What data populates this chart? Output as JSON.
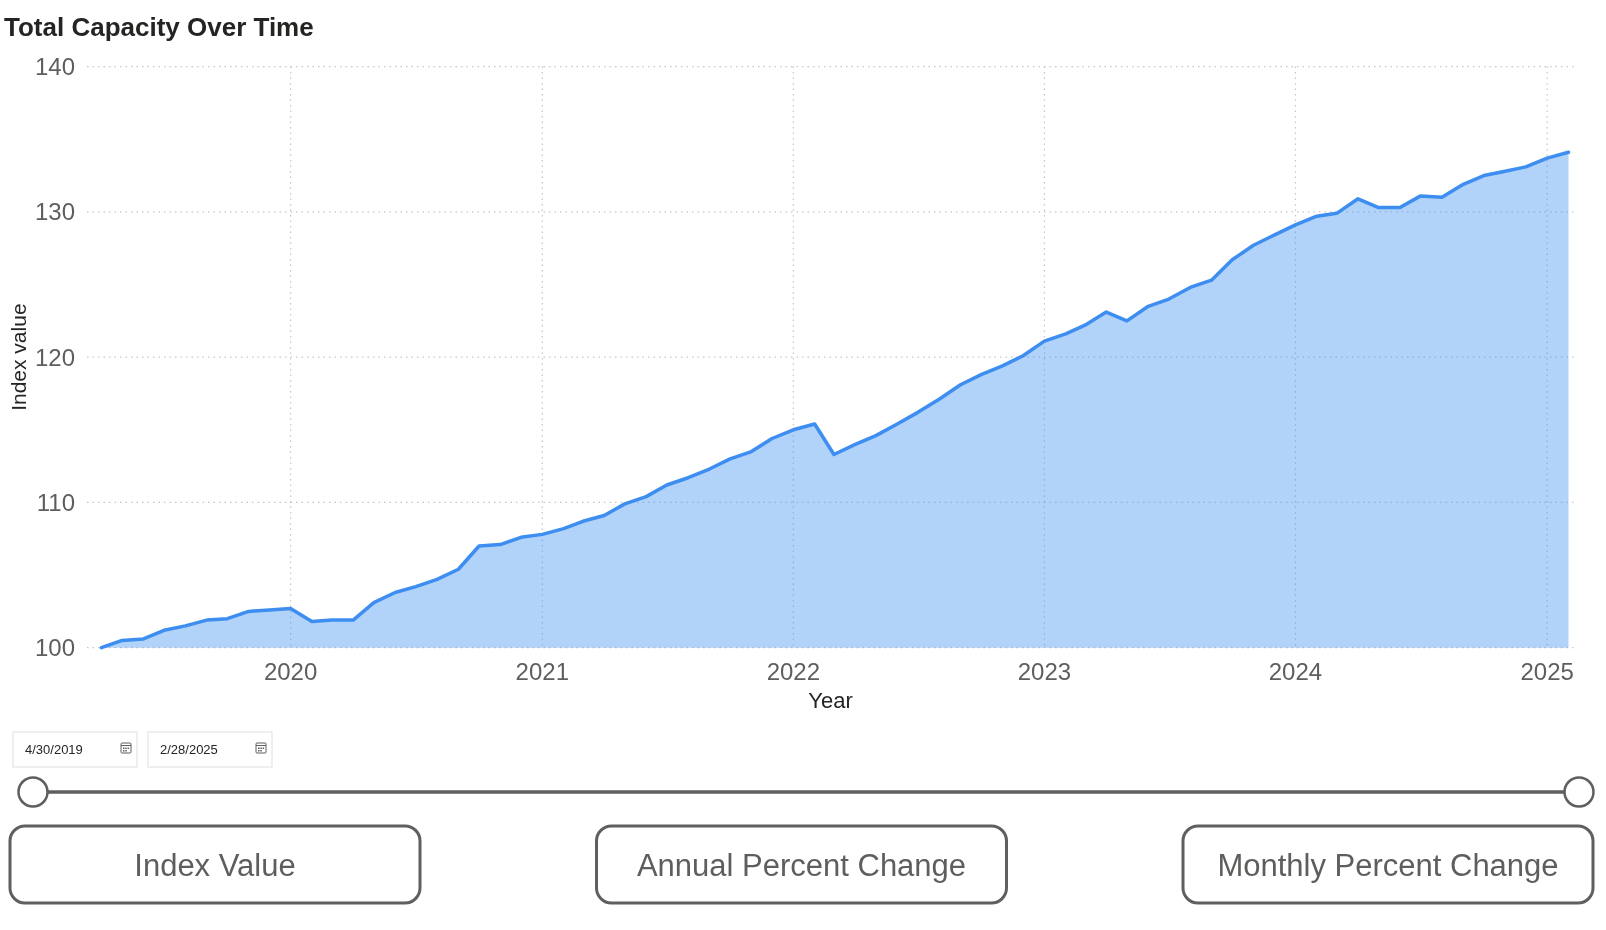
{
  "chart_data": {
    "type": "area",
    "title": "Total Capacity Over Time",
    "xlabel": "Year",
    "ylabel": "Index value",
    "x": [
      "2019-04",
      "2019-05",
      "2019-06",
      "2019-07",
      "2019-08",
      "2019-09",
      "2019-10",
      "2019-11",
      "2019-12",
      "2020-01",
      "2020-02",
      "2020-03",
      "2020-04",
      "2020-05",
      "2020-06",
      "2020-07",
      "2020-08",
      "2020-09",
      "2020-10",
      "2020-11",
      "2020-12",
      "2021-01",
      "2021-02",
      "2021-03",
      "2021-04",
      "2021-05",
      "2021-06",
      "2021-07",
      "2021-08",
      "2021-09",
      "2021-10",
      "2021-11",
      "2021-12",
      "2022-01",
      "2022-02",
      "2022-03",
      "2022-04",
      "2022-05",
      "2022-06",
      "2022-07",
      "2022-08",
      "2022-09",
      "2022-10",
      "2022-11",
      "2022-12",
      "2023-01",
      "2023-02",
      "2023-03",
      "2023-04",
      "2023-05",
      "2023-06",
      "2023-07",
      "2023-08",
      "2023-09",
      "2023-10",
      "2023-11",
      "2023-12",
      "2024-01",
      "2024-02",
      "2024-03",
      "2024-04",
      "2024-05",
      "2024-06",
      "2024-07",
      "2024-08",
      "2024-09",
      "2024-10",
      "2024-11",
      "2024-12",
      "2025-01",
      "2025-02"
    ],
    "values": [
      100.0,
      100.5,
      100.6,
      101.2,
      101.5,
      101.9,
      102.0,
      102.5,
      102.6,
      102.7,
      101.8,
      101.9,
      101.9,
      103.1,
      103.8,
      104.2,
      104.7,
      105.4,
      107.0,
      107.1,
      107.6,
      107.8,
      108.2,
      108.7,
      109.1,
      109.9,
      110.4,
      111.2,
      111.7,
      112.3,
      113.0,
      113.5,
      114.4,
      115.0,
      115.4,
      113.3,
      114.0,
      114.6,
      115.4,
      116.2,
      117.1,
      118.1,
      118.8,
      119.4,
      120.1,
      121.1,
      121.6,
      122.2,
      123.1,
      122.5,
      123.5,
      124.0,
      124.8,
      125.3,
      126.7,
      127.7,
      128.4,
      129.1,
      129.7,
      129.9,
      130.9,
      130.3,
      130.3,
      131.1,
      131.0,
      131.9,
      132.5,
      132.8,
      133.1,
      133.7,
      134.1
    ],
    "color": "#3d8ef0",
    "xlim": [
      "2019-03-11",
      "2025-02-09"
    ],
    "xticks": [
      "2020",
      "2021",
      "2022",
      "2023",
      "2024",
      "2025"
    ],
    "ylim": [
      100,
      140
    ],
    "yticks": [
      100,
      110,
      120,
      130,
      140
    ],
    "grid": true,
    "annotations": [
      "4/30/2019",
      "2/28/2025",
      "Index Value",
      "Annual Percent Change",
      "Monthly Percent Change"
    ]
  }
}
